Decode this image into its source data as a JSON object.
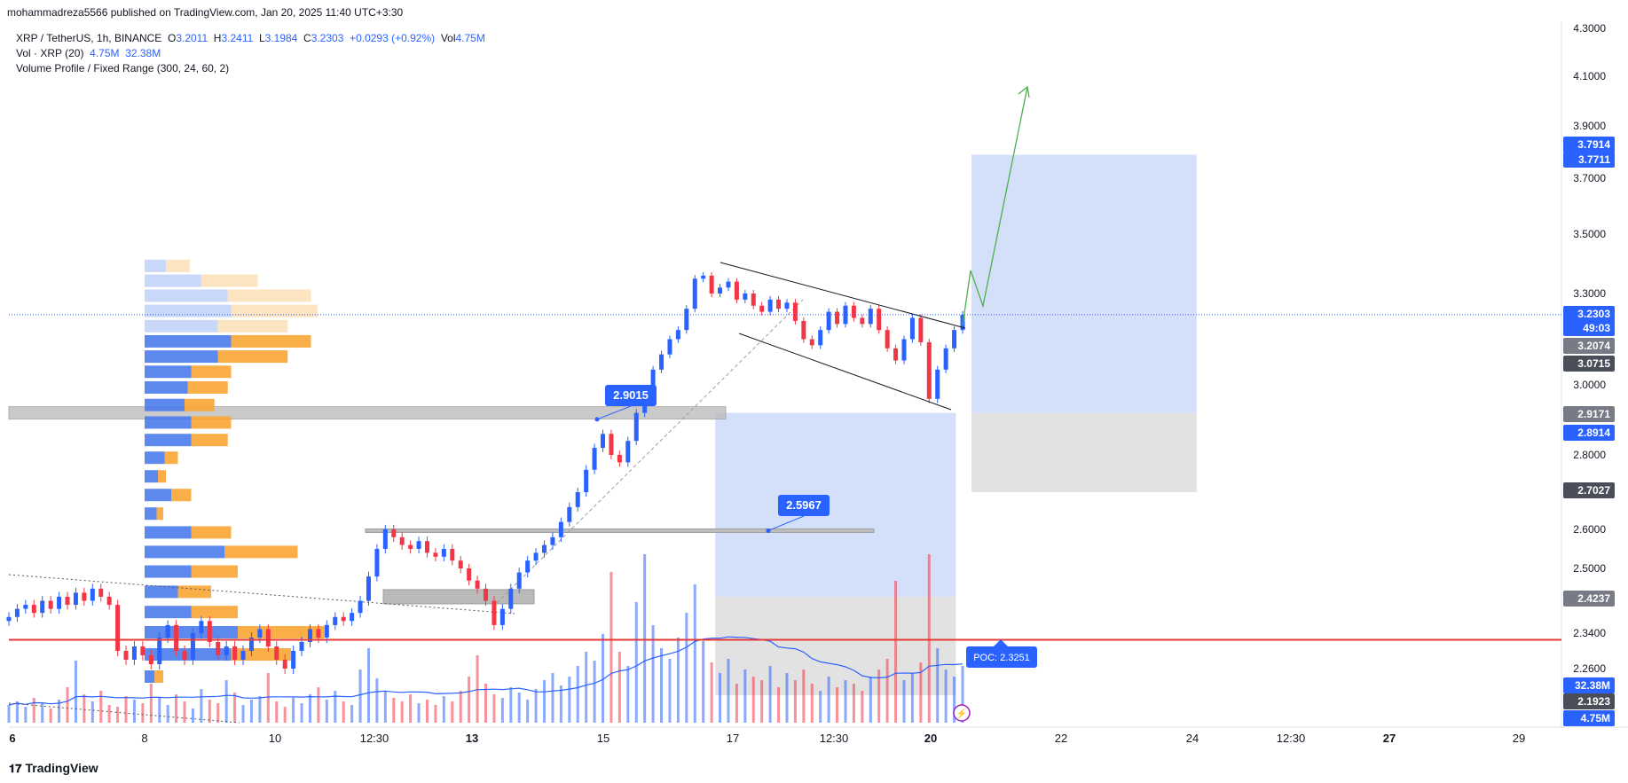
{
  "publisher": "mohammadreza5566 published on TradingView.com, Jan 20, 2025 11:40 UTC+3:30",
  "legend": {
    "symbol": "XRP / TetherUS, 1h, BINANCE",
    "o_label": "O",
    "o": "3.2011",
    "h_label": "H",
    "h": "3.2411",
    "l_label": "L",
    "l": "3.1984",
    "c_label": "C",
    "c": "3.2303",
    "change": "+0.0293 (+0.92%)",
    "vol_label": "Vol",
    "vol": "4.75M",
    "vol_line": "Vol · XRP (20)",
    "vol_a": "4.75M",
    "vol_b": "32.38M",
    "vp_line": "Volume Profile / Fixed Range (300, 24, 60, 2)"
  },
  "brand": "TradingView",
  "colors": {
    "up": "#2962ff",
    "down": "#f23645",
    "poc_line": "#e53935",
    "box_blue": "#c5d6f7",
    "box_gray": "#dddddd",
    "vp_blue": "#4b7bec",
    "vp_orange": "#f9a533",
    "arrow": "#4caf50",
    "price_line": "#2962ff"
  },
  "chart_data": {
    "type": "candlestick",
    "symbol": "XRP / TetherUS",
    "interval": "1h",
    "exchange": "BINANCE",
    "y_ticks": [
      "4.3000",
      "4.1000",
      "3.9000",
      "3.7000",
      "3.5000",
      "3.3000",
      "3.0000",
      "2.8000",
      "2.6000",
      "2.5000",
      "2.3400",
      "2.2600"
    ],
    "x_ticks": [
      "6",
      "8",
      "10",
      "12:30",
      "13",
      "15",
      "17",
      "12:30",
      "20",
      "22",
      "24",
      "12:30",
      "27",
      "29"
    ],
    "price_labels": [
      {
        "value": "3.7914",
        "style": "blue"
      },
      {
        "value": "3.7711",
        "style": "blue"
      },
      {
        "value": "3.2303",
        "style": "blue"
      },
      {
        "value": "49:03",
        "style": "blue"
      },
      {
        "value": "3.2074",
        "style": "gray"
      },
      {
        "value": "3.0715",
        "style": "dark"
      },
      {
        "value": "2.9171",
        "style": "gray"
      },
      {
        "value": "2.8914",
        "style": "blue"
      },
      {
        "value": "2.7027",
        "style": "dark"
      },
      {
        "value": "2.4237",
        "style": "gray"
      },
      {
        "value": "32.38M",
        "style": "blue"
      },
      {
        "value": "2.1923",
        "style": "dark"
      },
      {
        "value": "4.75M",
        "style": "blue"
      }
    ],
    "annotations": [
      {
        "text": "2.9015",
        "value": 2.9015
      },
      {
        "text": "2.5967",
        "value": 2.5967
      },
      {
        "text": "POC: 2.3251",
        "value": 2.3251
      }
    ],
    "last_price": 3.2303,
    "poc": 2.3251,
    "closes": [
      2.38,
      2.4,
      2.41,
      2.39,
      2.42,
      2.4,
      2.43,
      2.41,
      2.44,
      2.42,
      2.45,
      2.43,
      2.41,
      2.3,
      2.28,
      2.31,
      2.29,
      2.27,
      2.33,
      2.36,
      2.3,
      2.28,
      2.34,
      2.37,
      2.32,
      2.29,
      2.31,
      2.28,
      2.3,
      2.33,
      2.35,
      2.31,
      2.28,
      2.26,
      2.3,
      2.32,
      2.35,
      2.33,
      2.36,
      2.38,
      2.37,
      2.39,
      2.42,
      2.48,
      2.55,
      2.6,
      2.58,
      2.56,
      2.55,
      2.57,
      2.54,
      2.53,
      2.55,
      2.52,
      2.5,
      2.47,
      2.45,
      2.42,
      2.36,
      2.4,
      2.45,
      2.49,
      2.52,
      2.54,
      2.56,
      2.58,
      2.62,
      2.66,
      2.7,
      2.76,
      2.82,
      2.86,
      2.8,
      2.78,
      2.84,
      2.92,
      2.97,
      3.05,
      3.1,
      3.15,
      3.18,
      3.25,
      3.35,
      3.36,
      3.3,
      3.32,
      3.34,
      3.28,
      3.3,
      3.26,
      3.24,
      3.28,
      3.25,
      3.27,
      3.21,
      3.15,
      3.13,
      3.18,
      3.24,
      3.2,
      3.26,
      3.22,
      3.2,
      3.25,
      3.18,
      3.12,
      3.08,
      3.15,
      3.22,
      3.14,
      2.96,
      3.05,
      3.12,
      3.18,
      3.23
    ],
    "volumes": [
      1.0,
      1.2,
      0.9,
      1.4,
      1.1,
      0.8,
      1.3,
      2.0,
      3.5,
      1.6,
      1.2,
      1.8,
      1.0,
      0.9,
      1.5,
      1.3,
      1.1,
      2.2,
      1.4,
      1.0,
      1.6,
      1.2,
      0.8,
      1.9,
      1.3,
      1.1,
      2.4,
      1.7,
      1.0,
      1.3,
      1.5,
      2.8,
      1.2,
      0.9,
      1.4,
      1.1,
      1.6,
      2.0,
      1.3,
      1.8,
      1.2,
      1.0,
      3.0,
      4.2,
      2.5,
      1.8,
      1.4,
      1.2,
      1.6,
      1.1,
      1.3,
      1.0,
      1.5,
      1.2,
      1.8,
      2.6,
      3.8,
      2.2,
      1.6,
      1.4,
      2.0,
      1.7,
      1.3,
      1.9,
      2.4,
      2.8,
      2.1,
      2.6,
      3.2,
      4.0,
      3.5,
      5.0,
      8.5,
      4.0,
      3.2,
      6.8,
      9.5,
      5.5,
      4.2,
      3.6,
      4.8,
      6.2,
      7.8,
      4.6,
      3.4,
      2.8,
      3.6,
      2.2,
      3.0,
      2.6,
      2.4,
      3.2,
      2.0,
      2.8,
      2.4,
      3.0,
      2.2,
      1.8,
      2.6,
      2.0,
      2.4,
      2.2,
      1.8,
      2.6,
      3.0,
      3.6,
      8.0,
      2.4,
      2.8,
      3.4,
      9.5,
      4.2,
      3.0,
      2.6,
      3.2
    ],
    "volume_profile": [
      {
        "price": 3.39,
        "up": 0.32,
        "down": 0.36
      },
      {
        "price": 3.34,
        "up": 0.85,
        "down": 0.85
      },
      {
        "price": 3.29,
        "up": 1.25,
        "down": 1.25
      },
      {
        "price": 3.24,
        "up": 1.3,
        "down": 1.3
      },
      {
        "price": 3.19,
        "up": 1.1,
        "down": 1.05
      },
      {
        "price": 3.14,
        "up": 1.3,
        "down": 1.2
      },
      {
        "price": 3.09,
        "up": 1.1,
        "down": 1.05
      },
      {
        "price": 3.04,
        "up": 0.7,
        "down": 0.6
      },
      {
        "price": 2.99,
        "up": 0.65,
        "down": 0.6
      },
      {
        "price": 2.94,
        "up": 0.6,
        "down": 0.45
      },
      {
        "price": 2.89,
        "up": 0.7,
        "down": 0.6
      },
      {
        "price": 2.84,
        "up": 0.7,
        "down": 0.55
      },
      {
        "price": 2.79,
        "up": 0.3,
        "down": 0.2
      },
      {
        "price": 2.74,
        "up": 0.2,
        "down": 0.12
      },
      {
        "price": 2.69,
        "up": 0.4,
        "down": 0.3
      },
      {
        "price": 2.64,
        "up": 0.18,
        "down": 0.1
      },
      {
        "price": 2.59,
        "up": 0.7,
        "down": 0.6
      },
      {
        "price": 2.54,
        "up": 1.2,
        "down": 1.1
      },
      {
        "price": 2.49,
        "up": 0.7,
        "down": 0.7
      },
      {
        "price": 2.44,
        "up": 0.5,
        "down": 0.5
      },
      {
        "price": 2.39,
        "up": 0.7,
        "down": 0.7
      },
      {
        "price": 2.34,
        "up": 1.4,
        "down": 1.3
      },
      {
        "price": 2.29,
        "up": 1.3,
        "down": 0.9
      },
      {
        "price": 2.24,
        "up": 0.15,
        "down": 0.13
      }
    ],
    "zones": [
      {
        "kind": "blue",
        "x0": 0.455,
        "x1": 0.61,
        "y0": 2.43,
        "y1": 2.92
      },
      {
        "kind": "gray",
        "x0": 0.455,
        "x1": 0.61,
        "y0": 2.2,
        "y1": 2.43
      },
      {
        "kind": "blue",
        "x0": 0.62,
        "x1": 0.765,
        "y0": 2.92,
        "y1": 3.79
      },
      {
        "kind": "gray",
        "x0": 0.62,
        "x1": 0.765,
        "y0": 2.7,
        "y1": 2.92
      },
      {
        "kind": "blue",
        "x0": 0.935,
        "x1": 1.18,
        "y0": 3.207,
        "y1": 3.7914
      },
      {
        "kind": "gray",
        "x0": 0.935,
        "x1": 1.18,
        "y0": 3.0715,
        "y1": 3.207
      }
    ]
  }
}
